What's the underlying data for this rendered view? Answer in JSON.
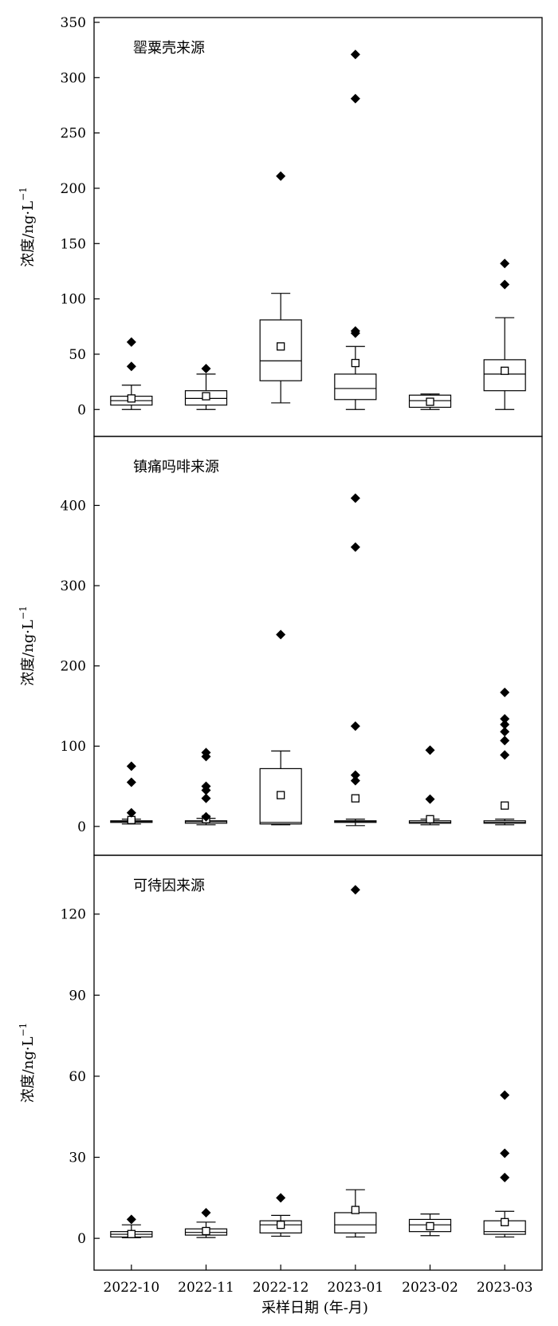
{
  "figure": {
    "xlabel": "采样日期 (年-月)",
    "categories": [
      "2022-10",
      "2022-11",
      "2022-12",
      "2023-01",
      "2023-02",
      "2023-03"
    ]
  },
  "chart_data": [
    {
      "type": "box",
      "title": "罂粟壳来源",
      "ylabel": "浓度/ng·L",
      "ylabel_sup": "−1",
      "ylim": [
        -20,
        350
      ],
      "yticks": [
        0,
        50,
        100,
        150,
        200,
        250,
        300,
        350
      ],
      "categories": [
        "2022-10",
        "2022-11",
        "2022-12",
        "2023-01",
        "2023-02",
        "2023-03"
      ],
      "boxes": [
        {
          "whisker_low": 0,
          "q1": 4,
          "median": 8,
          "q3": 12,
          "whisker_high": 22,
          "mean": 10,
          "outliers": [
            61,
            39
          ]
        },
        {
          "whisker_low": 0,
          "q1": 4,
          "median": 10,
          "q3": 17,
          "whisker_high": 32,
          "mean": 12,
          "outliers": [
            37
          ]
        },
        {
          "whisker_low": 6,
          "q1": 26,
          "median": 44,
          "q3": 81,
          "whisker_high": 105,
          "mean": 57,
          "outliers": [
            211
          ]
        },
        {
          "whisker_low": 0,
          "q1": 9,
          "median": 19,
          "q3": 32,
          "whisker_high": 57,
          "mean": 42,
          "outliers": [
            321,
            281,
            71,
            69
          ]
        },
        {
          "whisker_low": 0,
          "q1": 2,
          "median": 8,
          "q3": 13,
          "whisker_high": 14,
          "mean": 7,
          "outliers": []
        },
        {
          "whisker_low": 0,
          "q1": 17,
          "median": 32,
          "q3": 45,
          "whisker_high": 83,
          "mean": 35,
          "outliers": [
            132,
            113
          ]
        }
      ]
    },
    {
      "type": "box",
      "title": "镇痛吗啡来源",
      "ylabel": "浓度/ng·L",
      "ylabel_sup": "−1",
      "ylim": [
        -30,
        480
      ],
      "yticks": [
        0,
        100,
        200,
        300,
        400
      ],
      "categories": [
        "2022-10",
        "2022-11",
        "2022-12",
        "2023-01",
        "2023-02",
        "2023-03"
      ],
      "boxes": [
        {
          "whisker_low": 3,
          "q1": 5,
          "median": 6,
          "q3": 7,
          "whisker_high": 9,
          "mean": 8,
          "outliers": [
            75,
            55,
            17
          ]
        },
        {
          "whisker_low": 2,
          "q1": 4,
          "median": 6,
          "q3": 7,
          "whisker_high": 10,
          "mean": 9,
          "outliers": [
            92,
            87,
            50,
            45,
            35,
            12
          ]
        },
        {
          "whisker_low": 2,
          "q1": 3,
          "median": 5,
          "q3": 72,
          "whisker_high": 94,
          "mean": 39,
          "outliers": [
            239
          ]
        },
        {
          "whisker_low": 1,
          "q1": 5,
          "median": 6,
          "q3": 7,
          "whisker_high": 9,
          "mean": 35,
          "outliers": [
            409,
            348,
            125,
            64,
            57
          ]
        },
        {
          "whisker_low": 2,
          "q1": 4,
          "median": 5,
          "q3": 7,
          "whisker_high": 9,
          "mean": 9,
          "outliers": [
            95,
            34
          ]
        },
        {
          "whisker_low": 2,
          "q1": 4,
          "median": 5,
          "q3": 7,
          "whisker_high": 9,
          "mean": 26,
          "outliers": [
            167,
            134,
            127,
            118,
            107,
            89
          ]
        }
      ]
    },
    {
      "type": "box",
      "title": "可待因来源",
      "ylabel": "浓度/ng·L",
      "ylabel_sup": "−1",
      "ylim": [
        -10,
        140
      ],
      "yticks": [
        0,
        30,
        60,
        90,
        120
      ],
      "categories": [
        "2022-10",
        "2022-11",
        "2022-12",
        "2023-01",
        "2023-02",
        "2023-03"
      ],
      "boxes": [
        {
          "whisker_low": 0.2,
          "q1": 0.5,
          "median": 1.5,
          "q3": 2.5,
          "whisker_high": 5,
          "mean": 1.6,
          "outliers": [
            7
          ]
        },
        {
          "whisker_low": 0.3,
          "q1": 1.2,
          "median": 2.2,
          "q3": 3.5,
          "whisker_high": 6,
          "mean": 2.7,
          "outliers": [
            9.5
          ]
        },
        {
          "whisker_low": 0.8,
          "q1": 2,
          "median": 5,
          "q3": 6.5,
          "whisker_high": 8.5,
          "mean": 5,
          "outliers": [
            15
          ]
        },
        {
          "whisker_low": 0.5,
          "q1": 2,
          "median": 5,
          "q3": 9.5,
          "whisker_high": 18,
          "mean": 10.5,
          "outliers": [
            129
          ]
        },
        {
          "whisker_low": 1,
          "q1": 2.5,
          "median": 5,
          "q3": 7,
          "whisker_high": 9,
          "mean": 4.5,
          "outliers": []
        },
        {
          "whisker_low": 0.5,
          "q1": 1.5,
          "median": 2.5,
          "q3": 6.5,
          "whisker_high": 10,
          "mean": 6,
          "outliers": [
            53,
            31.5,
            22.5
          ]
        }
      ]
    }
  ]
}
